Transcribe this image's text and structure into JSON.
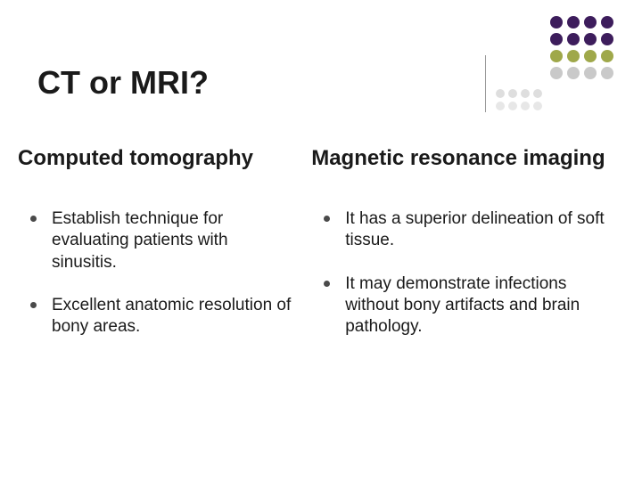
{
  "title": "CT or MRI?",
  "left": {
    "heading": "Computed tomography",
    "items": [
      "Establish technique for evaluating patients with sinusitis.",
      "Excellent anatomic resolution of bony areas."
    ]
  },
  "right": {
    "heading": "Magnetic resonance imaging",
    "items": [
      "It has a superior delineation of soft tissue.",
      "It may demonstrate infections without bony artifacts and brain pathology."
    ]
  },
  "decoration": {
    "dots": [
      "#3d1d5c",
      "#3d1d5c",
      "#3d1d5c",
      "#3d1d5c",
      "#3d1d5c",
      "#3d1d5c",
      "#3d1d5c",
      "#3d1d5c",
      "#9fa84a",
      "#9fa84a",
      "#9fa84a",
      "#9fa84a",
      "#c9c9c9",
      "#c9c9c9",
      "#c9c9c9",
      "#c9c9c9"
    ],
    "small_dots": [
      "#dedede",
      "#dedede",
      "#dedede",
      "#dedede",
      "#e7e7e7",
      "#e7e7e7",
      "#e7e7e7",
      "#e7e7e7"
    ]
  },
  "colors": {
    "background": "#ffffff",
    "text": "#1a1a1a",
    "bullet": "#4a4a4a",
    "divider": "#9a9a9a"
  },
  "typography": {
    "title_fontsize": 36,
    "heading_fontsize": 24,
    "body_fontsize": 19,
    "font_family": "Arial"
  }
}
